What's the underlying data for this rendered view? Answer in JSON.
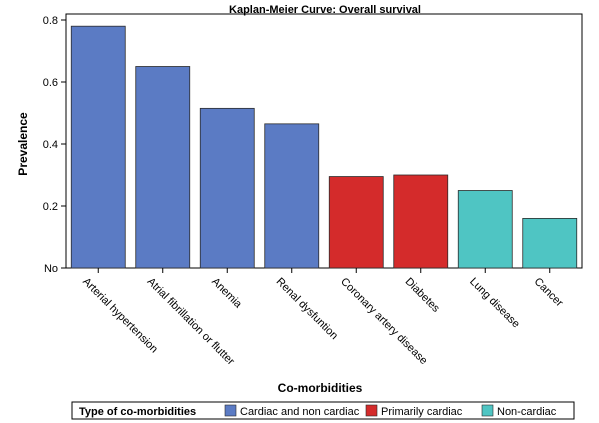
{
  "chart_data": {
    "type": "bar",
    "title": "Kaplan-Meier Curve: Overall survival",
    "xlabel": "Co-morbidities",
    "ylabel": "Prevalence",
    "ylim": [
      0,
      0.8
    ],
    "yticks": [
      {
        "value": 0,
        "label": "No"
      },
      {
        "value": 0.2,
        "label": "0.2"
      },
      {
        "value": 0.4,
        "label": "0.4"
      },
      {
        "value": 0.6,
        "label": "0.6"
      },
      {
        "value": 0.8,
        "label": "0.8"
      }
    ],
    "categories": [
      "Arterial hypertension",
      "Atrial fibrillation or flutter",
      "Anemia",
      "Renal dysfuntion",
      "Coronary artery disease",
      "Diabetes",
      "Lung disease",
      "Cancer"
    ],
    "values": [
      0.78,
      0.65,
      0.515,
      0.465,
      0.295,
      0.3,
      0.25,
      0.16
    ],
    "groups": [
      0,
      0,
      0,
      0,
      1,
      1,
      2,
      2
    ],
    "grid": false,
    "legend": {
      "title": "Type of co-morbidities",
      "placement": "bottom",
      "entries": [
        {
          "label": "Cardiac and non cardiac",
          "color": "#5b7bc4"
        },
        {
          "label": "Primarily cardiac",
          "color": "#d42b2b"
        },
        {
          "label": "Non-cardiac",
          "color": "#4fc5c3"
        }
      ]
    }
  }
}
